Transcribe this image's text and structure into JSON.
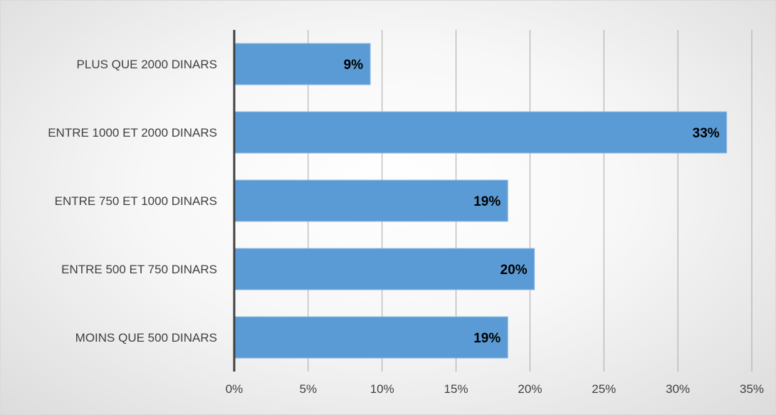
{
  "chart_data": {
    "type": "bar",
    "orientation": "horizontal",
    "categories": [
      "PLUS QUE 2000 DINARS",
      "ENTRE 1000 ET 2000 DINARS",
      "ENTRE 750 ET 1000 DINARS",
      "ENTRE 500 ET 750 DINARS",
      "MOINS QUE 500 DINARS"
    ],
    "values": [
      9.2,
      33.3,
      18.5,
      20.3,
      18.5
    ],
    "data_labels": [
      "9%",
      "33%",
      "19%",
      "20%",
      "19%"
    ],
    "xlim": [
      0,
      35
    ],
    "x_ticks": [
      0,
      5,
      10,
      15,
      20,
      25,
      30,
      35
    ],
    "x_tick_labels": [
      "0%",
      "5%",
      "10%",
      "15%",
      "20%",
      "25%",
      "30%",
      "35%"
    ],
    "title": "",
    "xlabel": "",
    "ylabel": "",
    "grid": "vertical",
    "legend": "none",
    "colors": {
      "bar": "#5b9bd5",
      "bar_border": "#8fb8e3",
      "grid": "#a6a6a6",
      "axis": "#404040"
    }
  }
}
